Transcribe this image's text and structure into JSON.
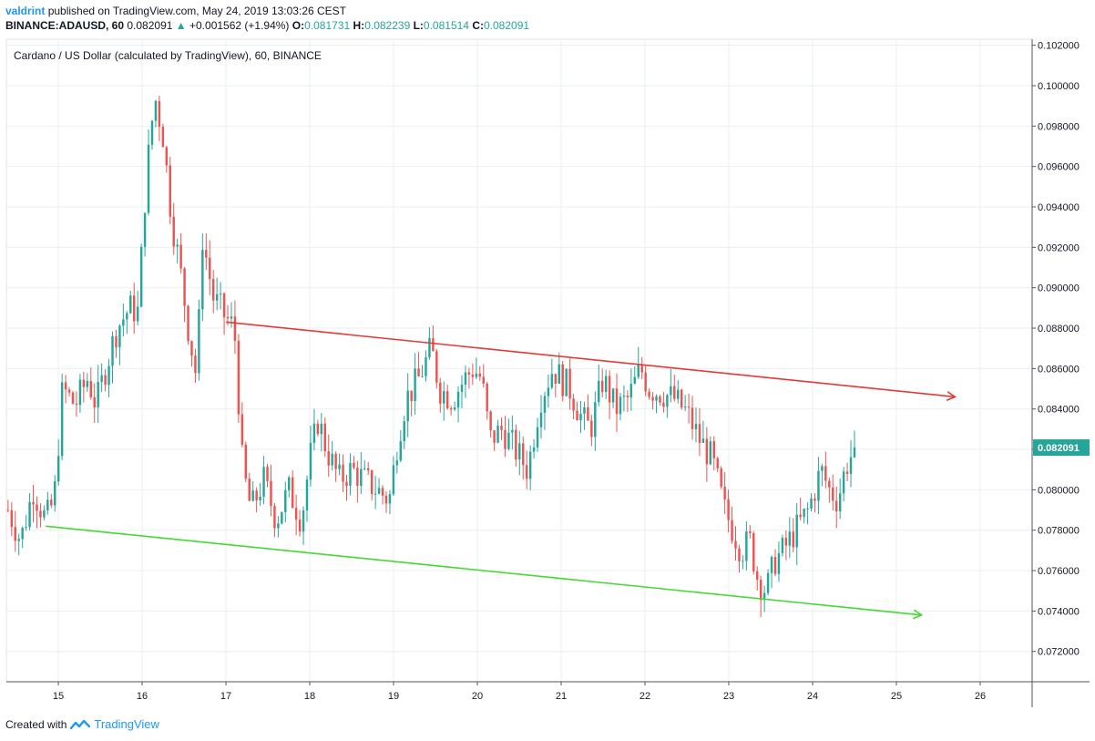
{
  "header": {
    "user": "valdrint",
    "published": "published on TradingView.com, May 24, 2019 13:03:26 CEST",
    "symbol": "BINANCE:ADAUSD, 60",
    "last": "0.082091",
    "change_arrow": "▲",
    "change": "+0.001562 (+1.94%)",
    "o_label": "O:",
    "o": "0.081731",
    "h_label": "H:",
    "h": "0.082239",
    "l_label": "L:",
    "l": "0.081514",
    "c_label": "C:",
    "c": "0.082091"
  },
  "footer": {
    "created_with": "Created with",
    "brand": "TradingView"
  },
  "colors": {
    "up": "#26a69a",
    "down": "#ef5350",
    "resistance": "#e53935",
    "support": "#43d931",
    "price_tag": "#26a69a",
    "grid": "#e9eff3",
    "text": "#131722"
  },
  "chart_data": {
    "type": "candlestick",
    "title": "Cardano / US Dollar (calculated by TradingView), 60, BINANCE",
    "xlabel": "",
    "ylabel": "",
    "x_ticks": [
      "15",
      "16",
      "17",
      "18",
      "19",
      "20",
      "21",
      "22",
      "23",
      "24",
      "25",
      "26"
    ],
    "y_ticks": [
      "0.102000",
      "0.100000",
      "0.098000",
      "0.096000",
      "0.094000",
      "0.092000",
      "0.090000",
      "0.088000",
      "0.086000",
      "0.084000",
      "0.082000",
      "0.080000",
      "0.078000",
      "0.076000",
      "0.074000",
      "0.072000"
    ],
    "ylim": [
      0.0705,
      0.1023
    ],
    "xlim_days": [
      14.38,
      26.62
    ],
    "grid": true,
    "last_price_label": "0.082091",
    "trendlines": [
      {
        "name": "resistance",
        "from": [
          17.0,
          0.0883
        ],
        "to": [
          25.7,
          0.0846
        ],
        "color": "#e53935"
      },
      {
        "name": "support",
        "from": [
          14.85,
          0.0782
        ],
        "to": [
          25.3,
          0.0738
        ],
        "color": "#43d931"
      }
    ],
    "close_path": [
      [
        14.4,
        0.079
      ],
      [
        14.55,
        0.0775
      ],
      [
        14.7,
        0.08
      ],
      [
        14.85,
        0.0785
      ],
      [
        14.95,
        0.0795
      ],
      [
        15.05,
        0.085
      ],
      [
        15.2,
        0.0842
      ],
      [
        15.35,
        0.0855
      ],
      [
        15.45,
        0.0842
      ],
      [
        15.55,
        0.0858
      ],
      [
        15.7,
        0.088
      ],
      [
        15.85,
        0.089
      ],
      [
        15.95,
        0.0888
      ],
      [
        16.05,
        0.0955
      ],
      [
        16.15,
        0.0995
      ],
      [
        16.25,
        0.0975
      ],
      [
        16.35,
        0.0935
      ],
      [
        16.45,
        0.091
      ],
      [
        16.55,
        0.088
      ],
      [
        16.65,
        0.0855
      ],
      [
        16.72,
        0.0925
      ],
      [
        16.85,
        0.0895
      ],
      [
        17.0,
        0.0885
      ],
      [
        17.1,
        0.088
      ],
      [
        17.2,
        0.081
      ],
      [
        17.3,
        0.079
      ],
      [
        17.45,
        0.0805
      ],
      [
        17.6,
        0.0785
      ],
      [
        17.75,
        0.08
      ],
      [
        17.9,
        0.0785
      ],
      [
        18.0,
        0.0815
      ],
      [
        18.1,
        0.0835
      ],
      [
        18.2,
        0.082
      ],
      [
        18.35,
        0.0805
      ],
      [
        18.5,
        0.081
      ],
      [
        18.65,
        0.0805
      ],
      [
        18.8,
        0.08
      ],
      [
        18.95,
        0.0795
      ],
      [
        19.05,
        0.0825
      ],
      [
        19.15,
        0.0845
      ],
      [
        19.3,
        0.0855
      ],
      [
        19.45,
        0.087
      ],
      [
        19.55,
        0.085
      ],
      [
        19.7,
        0.0845
      ],
      [
        19.85,
        0.0855
      ],
      [
        19.95,
        0.086
      ],
      [
        20.05,
        0.0855
      ],
      [
        20.15,
        0.0825
      ],
      [
        20.3,
        0.083
      ],
      [
        20.45,
        0.082
      ],
      [
        20.6,
        0.081
      ],
      [
        20.75,
        0.0845
      ],
      [
        20.9,
        0.086
      ],
      [
        21.0,
        0.0855
      ],
      [
        21.1,
        0.085
      ],
      [
        21.25,
        0.0835
      ],
      [
        21.35,
        0.083
      ],
      [
        21.5,
        0.0855
      ],
      [
        21.65,
        0.084
      ],
      [
        21.8,
        0.0845
      ],
      [
        21.95,
        0.086
      ],
      [
        22.05,
        0.085
      ],
      [
        22.2,
        0.0848
      ],
      [
        22.35,
        0.0845
      ],
      [
        22.5,
        0.0838
      ],
      [
        22.65,
        0.0825
      ],
      [
        22.8,
        0.0815
      ],
      [
        22.95,
        0.079
      ],
      [
        23.05,
        0.078
      ],
      [
        23.15,
        0.077
      ],
      [
        23.25,
        0.0775
      ],
      [
        23.35,
        0.0755
      ],
      [
        23.45,
        0.075
      ],
      [
        23.55,
        0.0765
      ],
      [
        23.65,
        0.077
      ],
      [
        23.8,
        0.078
      ],
      [
        23.95,
        0.079
      ],
      [
        24.1,
        0.081
      ],
      [
        24.2,
        0.08
      ],
      [
        24.3,
        0.0795
      ],
      [
        24.4,
        0.0812
      ],
      [
        24.5,
        0.082
      ]
    ],
    "candle_count": 236,
    "candle_seed": 7
  }
}
